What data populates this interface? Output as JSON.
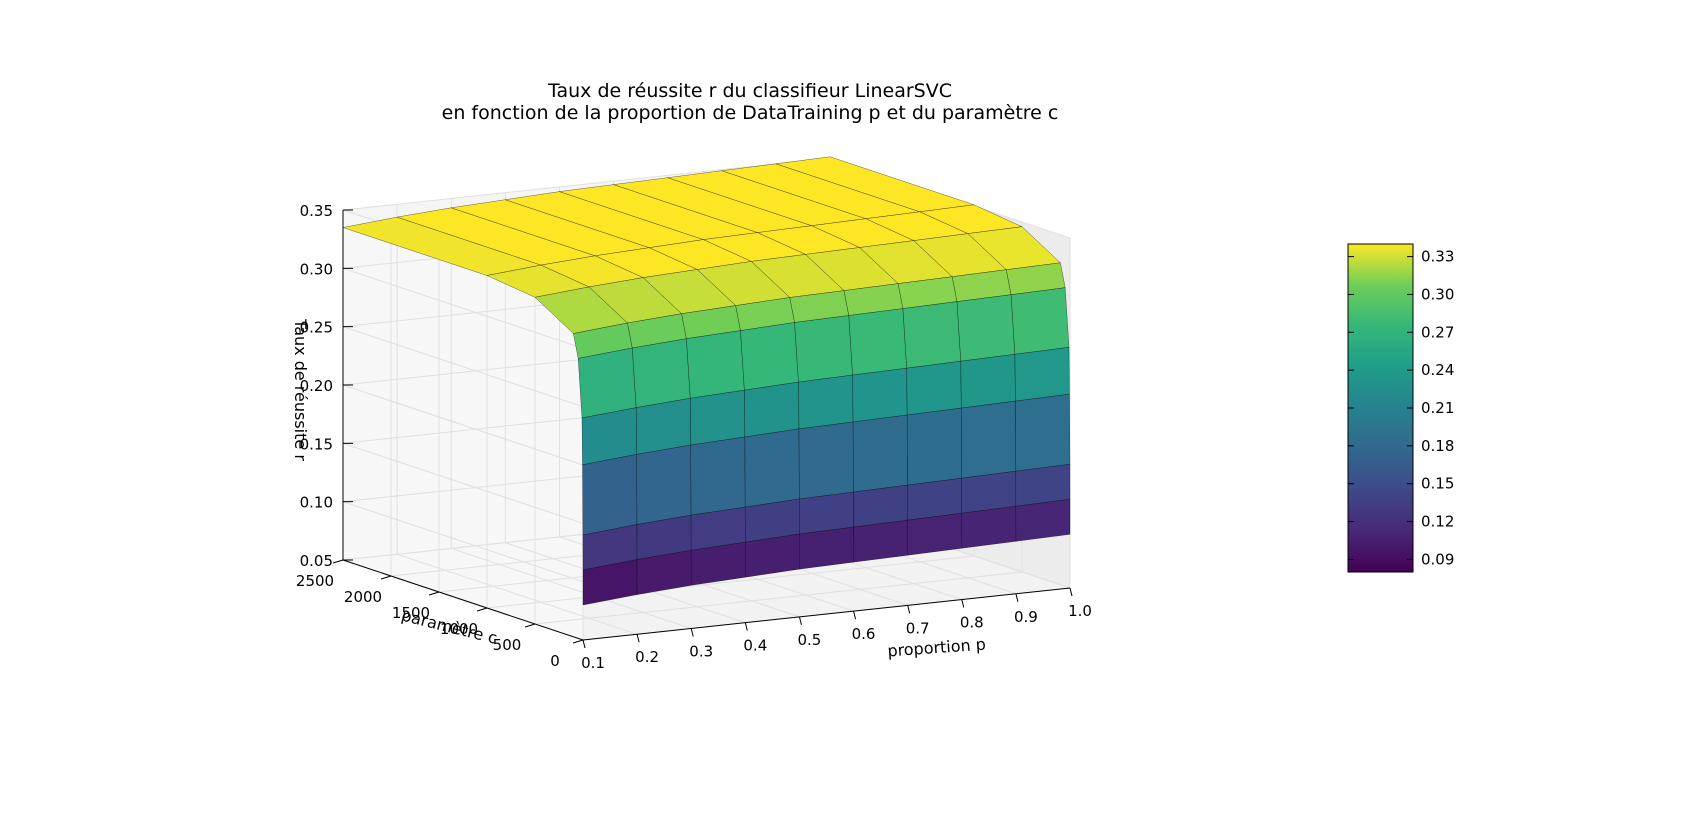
{
  "chart_data": {
    "type": "surface-3d",
    "title": "Taux de réussite r du classifieur LinearSVC",
    "subtitle": "en fonction de la proportion de DataTraining p et du paramètre c",
    "xlabel": "proportion p",
    "ylabel": "paramètre c",
    "zlabel": "Taux de réussite r",
    "x_ticks": [
      "0.1",
      "0.2",
      "0.3",
      "0.4",
      "0.5",
      "0.6",
      "0.7",
      "0.8",
      "0.9",
      "1.0"
    ],
    "y_ticks": [
      "0",
      "500",
      "1000",
      "1500",
      "2000",
      "2500"
    ],
    "z_ticks": [
      "0.05",
      "0.10",
      "0.15",
      "0.20",
      "0.25",
      "0.30",
      "0.35"
    ],
    "xlim": [
      0.1,
      1.0
    ],
    "ylim": [
      0,
      2500
    ],
    "zlim": [
      0.05,
      0.35
    ],
    "grid": true,
    "colormap": "viridis",
    "colorbar": {
      "ticks": [
        "0.09",
        "0.12",
        "0.15",
        "0.18",
        "0.21",
        "0.24",
        "0.27",
        "0.30",
        "0.33"
      ],
      "range": [
        0.08,
        0.34
      ]
    },
    "surface": {
      "x": [
        0.1,
        0.2,
        0.3,
        0.4,
        0.5,
        0.6,
        0.7,
        0.8,
        0.9,
        1.0
      ],
      "c": [
        0,
        0.5,
        1,
        5,
        10,
        50,
        100,
        500,
        1000,
        2500
      ],
      "r_by_c": [
        0.08,
        0.11,
        0.14,
        0.2,
        0.24,
        0.29,
        0.31,
        0.33,
        0.335,
        0.335
      ],
      "p_effect": [
        0.0,
        0.004,
        0.007,
        0.009,
        0.011,
        0.012,
        0.013,
        0.014,
        0.015,
        0.016
      ]
    },
    "colors": {
      "pane": "#f2f2f2",
      "grid": "#e0e0e0",
      "edge": "#000000"
    }
  }
}
